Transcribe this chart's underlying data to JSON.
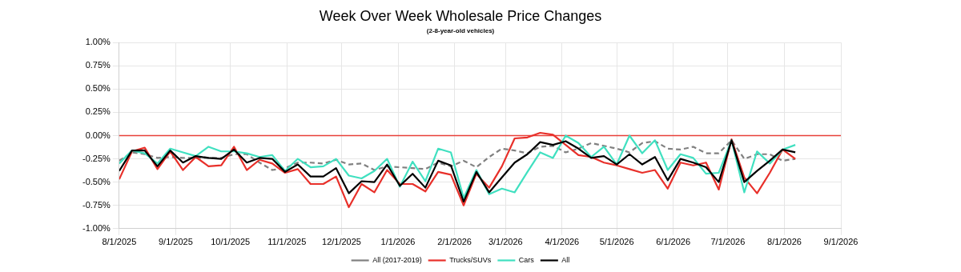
{
  "chart_data": {
    "type": "line",
    "title": "Week Over Week Wholesale Price Changes",
    "subtitle": "(2-8-year-old vehicles)",
    "x": [
      "2025-08-01",
      "2025-08-08",
      "2025-08-15",
      "2025-08-22",
      "2025-08-29",
      "2025-09-05",
      "2025-09-12",
      "2025-09-19",
      "2025-09-26",
      "2025-10-03",
      "2025-10-10",
      "2025-10-17",
      "2025-10-24",
      "2025-10-31",
      "2025-11-07",
      "2025-11-14",
      "2025-11-21",
      "2025-11-28",
      "2025-12-05",
      "2025-12-12",
      "2025-12-19",
      "2025-12-26",
      "2026-01-02",
      "2026-01-09",
      "2026-01-16",
      "2026-01-23",
      "2026-01-30",
      "2026-02-06",
      "2026-02-13",
      "2026-02-20",
      "2026-02-27",
      "2026-03-06",
      "2026-03-13",
      "2026-03-20",
      "2026-03-27",
      "2026-04-03",
      "2026-04-10",
      "2026-04-17",
      "2026-04-24",
      "2026-05-01",
      "2026-05-08",
      "2026-05-15",
      "2026-05-22",
      "2026-05-29",
      "2026-06-05",
      "2026-06-12",
      "2026-06-19",
      "2026-06-26",
      "2026-07-03",
      "2026-07-10",
      "2026-07-17",
      "2026-07-24",
      "2026-07-31",
      "2026-08-07"
    ],
    "series": [
      {
        "name": "All (2017-2019)",
        "color": "#808080",
        "line_style": "dashed",
        "values": [
          -0.27,
          -0.18,
          -0.2,
          -0.24,
          -0.23,
          -0.24,
          -0.24,
          -0.24,
          -0.24,
          -0.2,
          -0.2,
          -0.29,
          -0.37,
          -0.35,
          -0.29,
          -0.29,
          -0.3,
          -0.26,
          -0.31,
          -0.3,
          -0.37,
          -0.33,
          -0.34,
          -0.35,
          -0.36,
          -0.29,
          -0.33,
          -0.27,
          -0.34,
          -0.23,
          -0.14,
          -0.16,
          -0.19,
          -0.12,
          -0.11,
          -0.18,
          -0.14,
          -0.08,
          -0.11,
          -0.14,
          -0.18,
          -0.08,
          -0.06,
          -0.14,
          -0.15,
          -0.12,
          -0.19,
          -0.19,
          -0.05,
          -0.25,
          -0.2,
          -0.2,
          -0.27,
          -0.25
        ]
      },
      {
        "name": "Trucks/SUVs",
        "color": "#e8302a",
        "values": [
          -0.47,
          -0.17,
          -0.13,
          -0.36,
          -0.17,
          -0.37,
          -0.23,
          -0.33,
          -0.32,
          -0.12,
          -0.37,
          -0.26,
          -0.3,
          -0.4,
          -0.36,
          -0.52,
          -0.52,
          -0.44,
          -0.77,
          -0.52,
          -0.61,
          -0.37,
          -0.52,
          -0.52,
          -0.6,
          -0.39,
          -0.42,
          -0.75,
          -0.41,
          -0.56,
          -0.33,
          -0.03,
          -0.02,
          0.03,
          0.01,
          -0.1,
          -0.21,
          -0.23,
          -0.29,
          -0.32,
          -0.36,
          -0.4,
          -0.37,
          -0.57,
          -0.29,
          -0.32,
          -0.29,
          -0.58,
          -0.04,
          -0.45,
          -0.62,
          -0.4,
          -0.15,
          -0.25
        ]
      },
      {
        "name": "Cars",
        "color": "#40e0c0",
        "values": [
          -0.3,
          -0.16,
          -0.19,
          -0.3,
          -0.14,
          -0.18,
          -0.22,
          -0.12,
          -0.17,
          -0.17,
          -0.19,
          -0.23,
          -0.21,
          -0.38,
          -0.25,
          -0.34,
          -0.33,
          -0.25,
          -0.43,
          -0.46,
          -0.38,
          -0.25,
          -0.55,
          -0.28,
          -0.49,
          -0.14,
          -0.18,
          -0.67,
          -0.37,
          -0.63,
          -0.57,
          -0.61,
          -0.39,
          -0.18,
          -0.24,
          0.0,
          -0.08,
          -0.23,
          -0.12,
          -0.31,
          0.0,
          -0.19,
          -0.05,
          -0.37,
          -0.2,
          -0.24,
          -0.41,
          -0.4,
          -0.05,
          -0.61,
          -0.17,
          -0.3,
          -0.15,
          -0.1
        ]
      },
      {
        "name": "All",
        "color": "#000000",
        "values": [
          -0.38,
          -0.16,
          -0.16,
          -0.33,
          -0.16,
          -0.29,
          -0.22,
          -0.24,
          -0.25,
          -0.15,
          -0.29,
          -0.24,
          -0.25,
          -0.39,
          -0.31,
          -0.44,
          -0.44,
          -0.35,
          -0.62,
          -0.49,
          -0.5,
          -0.31,
          -0.54,
          -0.41,
          -0.56,
          -0.27,
          -0.32,
          -0.71,
          -0.39,
          -0.61,
          -0.45,
          -0.29,
          -0.2,
          -0.07,
          -0.1,
          -0.06,
          -0.14,
          -0.24,
          -0.22,
          -0.31,
          -0.2,
          -0.31,
          -0.23,
          -0.48,
          -0.25,
          -0.29,
          -0.34,
          -0.5,
          -0.05,
          -0.5,
          -0.38,
          -0.27,
          -0.15,
          -0.18
        ]
      }
    ],
    "xlim": [
      "2025-08-01",
      "2026-09-01"
    ],
    "xticks": [
      {
        "value": "2025-08-01",
        "label": "8/1/2025"
      },
      {
        "value": "2025-09-01",
        "label": "9/1/2025"
      },
      {
        "value": "2025-10-01",
        "label": "10/1/2025"
      },
      {
        "value": "2025-11-01",
        "label": "11/1/2025"
      },
      {
        "value": "2025-12-01",
        "label": "12/1/2025"
      },
      {
        "value": "2026-01-01",
        "label": "1/1/2026"
      },
      {
        "value": "2026-02-01",
        "label": "2/1/2026"
      },
      {
        "value": "2026-03-01",
        "label": "3/1/2026"
      },
      {
        "value": "2026-04-01",
        "label": "4/1/2026"
      },
      {
        "value": "2026-05-01",
        "label": "5/1/2026"
      },
      {
        "value": "2026-06-01",
        "label": "6/1/2026"
      },
      {
        "value": "2026-07-01",
        "label": "7/1/2026"
      },
      {
        "value": "2026-08-01",
        "label": "8/1/2026"
      },
      {
        "value": "2026-09-01",
        "label": "9/1/2026"
      }
    ],
    "ylim": [
      -1,
      1
    ],
    "yticks": [
      {
        "value": -1,
        "label": "-1.00%"
      },
      {
        "value": -0.75,
        "label": "-0.75%"
      },
      {
        "value": -0.5,
        "label": "-0.50%"
      },
      {
        "value": -0.25,
        "label": "-0.25%"
      },
      {
        "value": 0,
        "label": "0.00%"
      },
      {
        "value": 0.25,
        "label": "0.25%"
      },
      {
        "value": 0.5,
        "label": "0.50%"
      },
      {
        "value": 0.75,
        "label": "0.75%"
      },
      {
        "value": 1,
        "label": "1.00%"
      }
    ],
    "ref_lines": [
      {
        "axis": "y",
        "value": 0,
        "color": "#e8403a"
      }
    ],
    "grid": true,
    "legend": "bottom",
    "marker": "none"
  }
}
